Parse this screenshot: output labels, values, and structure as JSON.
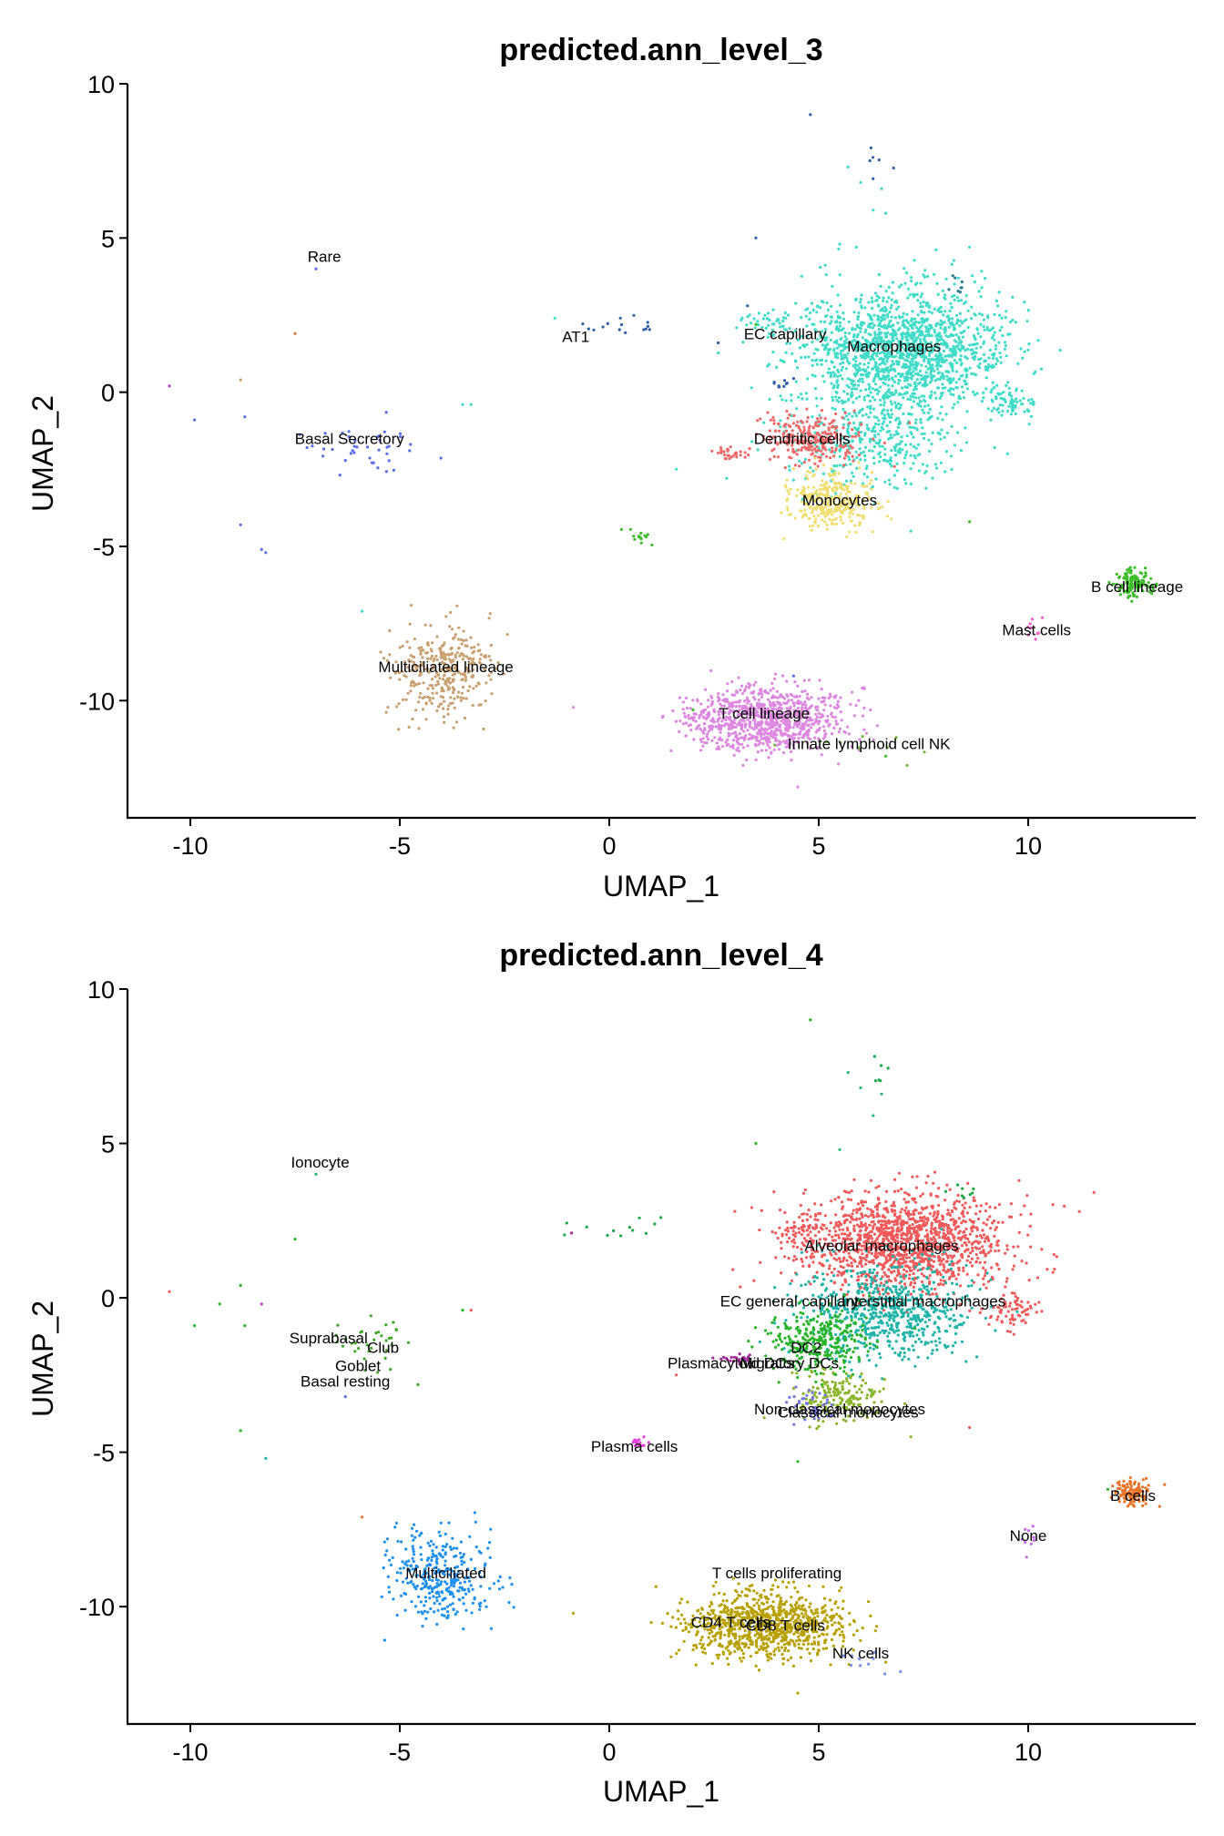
{
  "chart_data": [
    {
      "type": "scatter",
      "title": "predicted.ann_level_3",
      "xlabel": "UMAP_1",
      "ylabel": "UMAP_2",
      "xlim": [
        -11.5,
        14
      ],
      "ylim": [
        -13.8,
        10
      ],
      "xticks": [
        -10,
        -5,
        0,
        5,
        10
      ],
      "yticks": [
        -10,
        -5,
        0,
        5,
        10
      ],
      "grid": false,
      "series": [
        {
          "name": "Macrophages",
          "color": "#40dcc8",
          "clusters": [
            {
              "cx": 7.0,
              "cy": 1.3,
              "sx": 1.2,
              "sy": 1.0,
              "n": 1600
            },
            {
              "cx": 6.2,
              "cy": -1.6,
              "sx": 1.0,
              "sy": 0.7,
              "n": 350
            },
            {
              "cx": 9.6,
              "cy": -0.4,
              "sx": 0.3,
              "sy": 0.3,
              "n": 70
            },
            {
              "cx": 3.9,
              "cy": 2.2,
              "sx": 0.3,
              "sy": 0.2,
              "n": 40
            }
          ]
        },
        {
          "name": "Dendritic cells",
          "color": "#ee6a6a",
          "clusters": [
            {
              "cx": 4.9,
              "cy": -1.5,
              "sx": 0.6,
              "sy": 0.4,
              "n": 260
            },
            {
              "cx": 2.9,
              "cy": -2.0,
              "sx": 0.2,
              "sy": 0.1,
              "n": 30
            }
          ]
        },
        {
          "name": "Monocytes",
          "color": "#f0df70",
          "clusters": [
            {
              "cx": 5.3,
              "cy": -3.5,
              "sx": 0.5,
              "sy": 0.45,
              "n": 320
            }
          ]
        },
        {
          "name": "B cell lineage",
          "color": "#3cbe28",
          "clusters": [
            {
              "cx": 12.5,
              "cy": -6.2,
              "sx": 0.2,
              "sy": 0.2,
              "n": 130
            },
            {
              "cx": 0.7,
              "cy": -4.7,
              "sx": 0.15,
              "sy": 0.1,
              "n": 15
            }
          ]
        },
        {
          "name": "Mast cells",
          "color": "#f060c8",
          "clusters": [
            {
              "cx": 10.1,
              "cy": -7.7,
              "sx": 0.12,
              "sy": 0.25,
              "n": 9
            }
          ]
        },
        {
          "name": "Multiciliated lineage",
          "color": "#c8a070",
          "clusters": [
            {
              "cx": -4.0,
              "cy": -9.0,
              "sx": 0.6,
              "sy": 0.75,
              "n": 330
            }
          ]
        },
        {
          "name": "T cell lineage",
          "color": "#dd88e0",
          "clusters": [
            {
              "cx": 3.7,
              "cy": -10.6,
              "sx": 0.95,
              "sy": 0.5,
              "n": 950
            }
          ]
        },
        {
          "name": "Innate lymphoid cell NK",
          "color": "#7ab840",
          "clusters": [
            {
              "cx": 5.8,
              "cy": -11.5,
              "sx": 0.7,
              "sy": 0.3,
              "n": 10
            }
          ]
        },
        {
          "name": "Basal",
          "color": "#5a6de8",
          "clusters": [
            {
              "cx": -5.8,
              "cy": -1.8,
              "sx": 0.6,
              "sy": 0.5,
              "n": 40
            }
          ]
        },
        {
          "name": "AT1",
          "color": "#2f5fa8",
          "clusters": [
            {
              "cx": 0.2,
              "cy": 2.2,
              "sx": 0.6,
              "sy": 0.2,
              "n": 15
            },
            {
              "cx": 4.2,
              "cy": 0.3,
              "sx": 0.2,
              "sy": 0.1,
              "n": 10
            },
            {
              "cx": 6.3,
              "cy": 7.4,
              "sx": 0.2,
              "sy": 0.3,
              "n": 6
            }
          ]
        },
        {
          "name": "EC capillary",
          "color": "#2a7a90",
          "clusters": [
            {
              "cx": 8.4,
              "cy": 3.5,
              "sx": 0.2,
              "sy": 0.15,
              "n": 8
            }
          ]
        }
      ],
      "scattered_points": [
        {
          "x": -7.0,
          "y": 4.0,
          "color": "#5a6de8"
        },
        {
          "x": -7.5,
          "y": 1.9,
          "color": "#d8794a"
        },
        {
          "x": -10.5,
          "y": 0.2,
          "color": "#b040c0"
        },
        {
          "x": -9.9,
          "y": -0.9,
          "color": "#5a6de8"
        },
        {
          "x": -8.8,
          "y": 0.4,
          "color": "#c0a060"
        },
        {
          "x": -8.7,
          "y": -0.8,
          "color": "#5a6de8"
        },
        {
          "x": -8.8,
          "y": -4.3,
          "color": "#5a6de8"
        },
        {
          "x": -8.2,
          "y": -5.2,
          "color": "#5a6de8"
        },
        {
          "x": -8.3,
          "y": -5.1,
          "color": "#5a6de8"
        },
        {
          "x": -5.9,
          "y": -7.1,
          "color": "#40dcc8"
        },
        {
          "x": -3.3,
          "y": -0.4,
          "color": "#40dcc8"
        },
        {
          "x": -3.5,
          "y": -0.4,
          "color": "#40dcc8"
        },
        {
          "x": -1.3,
          "y": 2.4,
          "color": "#40dcc8"
        },
        {
          "x": 4.8,
          "y": 9.0,
          "color": "#2f5fa8"
        },
        {
          "x": 5.7,
          "y": 7.3,
          "color": "#40dcc8"
        },
        {
          "x": 6.0,
          "y": 6.8,
          "color": "#40dcc8"
        },
        {
          "x": 6.3,
          "y": 5.9,
          "color": "#40dcc8"
        },
        {
          "x": 6.5,
          "y": 6.6,
          "color": "#40dcc8"
        },
        {
          "x": 6.6,
          "y": 5.8,
          "color": "#40dcc8"
        },
        {
          "x": 3.5,
          "y": 5.0,
          "color": "#2f5fa8"
        },
        {
          "x": 5.9,
          "y": 4.7,
          "color": "#40dcc8"
        },
        {
          "x": 5.5,
          "y": 4.8,
          "color": "#40dcc8"
        },
        {
          "x": 3.3,
          "y": 2.8,
          "color": "#2f5fa8"
        },
        {
          "x": 2.6,
          "y": 1.6,
          "color": "#2f5fa8"
        },
        {
          "x": 3.5,
          "y": 2.2,
          "color": "#3cbe28"
        },
        {
          "x": 1.6,
          "y": -2.5,
          "color": "#40dcc8"
        },
        {
          "x": 8.6,
          "y": -4.2,
          "color": "#3cbe28"
        },
        {
          "x": 7.2,
          "y": -4.5,
          "color": "#40dcc8"
        },
        {
          "x": 4.4,
          "y": -9.2,
          "color": "#5a6de8"
        },
        {
          "x": 2.0,
          "y": -10.3,
          "color": "#3cbe28"
        },
        {
          "x": 6.6,
          "y": -11.8,
          "color": "#3cbe28"
        },
        {
          "x": 4.5,
          "y": -12.8,
          "color": "#dd88e0"
        }
      ],
      "annotations": [
        {
          "text": "Rare",
          "x": -6.8,
          "y": 4.4
        },
        {
          "text": "AT1",
          "x": -0.8,
          "y": 1.8
        },
        {
          "text": "EC capillary",
          "x": 4.2,
          "y": 1.9
        },
        {
          "text": "Macrophages",
          "x": 6.8,
          "y": 1.5
        },
        {
          "text": "Basal Secretory",
          "x": -6.2,
          "y": -1.5
        },
        {
          "text": "Dendritic cells",
          "x": 4.6,
          "y": -1.5
        },
        {
          "text": "Monocytes",
          "x": 5.5,
          "y": -3.5
        },
        {
          "text": "B cell lineage",
          "x": 12.6,
          "y": -6.3
        },
        {
          "text": "Mast cells",
          "x": 10.2,
          "y": -7.7
        },
        {
          "text": "Multiciliated lineage",
          "x": -3.9,
          "y": -8.9
        },
        {
          "text": "T cell lineage",
          "x": 3.7,
          "y": -10.4
        },
        {
          "text": "Innate lymphoid cell NK",
          "x": 6.2,
          "y": -11.4
        }
      ]
    },
    {
      "type": "scatter",
      "title": "predicted.ann_level_4",
      "xlabel": "UMAP_1",
      "ylabel": "UMAP_2",
      "xlim": [
        -11.5,
        14
      ],
      "ylim": [
        -13.8,
        10
      ],
      "xticks": [
        -10,
        -5,
        0,
        5,
        10
      ],
      "yticks": [
        -10,
        -5,
        0,
        5,
        10
      ],
      "grid": false,
      "series": [
        {
          "name": "Alveolar macrophages",
          "color": "#f05a5a",
          "clusters": [
            {
              "cx": 7.0,
              "cy": 1.8,
              "sx": 1.2,
              "sy": 0.8,
              "n": 1400
            },
            {
              "cx": 9.6,
              "cy": -0.4,
              "sx": 0.35,
              "sy": 0.3,
              "n": 70
            },
            {
              "cx": 4.6,
              "cy": 2.2,
              "sx": 0.3,
              "sy": 0.2,
              "n": 40
            }
          ]
        },
        {
          "name": "Interstitial macrophages",
          "color": "#20b4a8",
          "clusters": [
            {
              "cx": 6.6,
              "cy": -0.5,
              "sx": 1.0,
              "sy": 0.8,
              "n": 700
            }
          ]
        },
        {
          "name": "DC2",
          "color": "#28b428",
          "clusters": [
            {
              "cx": 5.0,
              "cy": -1.4,
              "sx": 0.6,
              "sy": 0.5,
              "n": 300
            }
          ]
        },
        {
          "name": "Classical monocytes",
          "color": "#8ab428",
          "clusters": [
            {
              "cx": 5.4,
              "cy": -3.2,
              "sx": 0.5,
              "sy": 0.4,
              "n": 180
            }
          ]
        },
        {
          "name": "Non-classical monocytes",
          "color": "#7878e0",
          "clusters": [
            {
              "cx": 4.9,
              "cy": -3.6,
              "sx": 0.3,
              "sy": 0.3,
              "n": 50
            }
          ]
        },
        {
          "name": "Migratory DCs",
          "color": "#a02898",
          "clusters": [
            {
              "cx": 3.1,
              "cy": -2.0,
              "sx": 0.25,
              "sy": 0.08,
              "n": 25
            }
          ]
        },
        {
          "name": "B cells",
          "color": "#e8742a",
          "clusters": [
            {
              "cx": 12.5,
              "cy": -6.3,
              "sx": 0.2,
              "sy": 0.2,
              "n": 130
            }
          ]
        },
        {
          "name": "Plasma cells",
          "color": "#e040d8",
          "clusters": [
            {
              "cx": 0.7,
              "cy": -4.7,
              "sx": 0.15,
              "sy": 0.1,
              "n": 15
            }
          ]
        },
        {
          "name": "None",
          "color": "#c868e8",
          "clusters": [
            {
              "cx": 10.1,
              "cy": -7.8,
              "sx": 0.12,
              "sy": 0.25,
              "n": 9
            }
          ]
        },
        {
          "name": "Multiciliated",
          "color": "#1e90f0",
          "clusters": [
            {
              "cx": -4.0,
              "cy": -9.0,
              "sx": 0.6,
              "sy": 0.75,
              "n": 330
            }
          ]
        },
        {
          "name": "CD4 T cells",
          "color": "#b8a000",
          "clusters": [
            {
              "cx": 3.7,
              "cy": -10.6,
              "sx": 0.95,
              "sy": 0.5,
              "n": 950
            }
          ]
        },
        {
          "name": "NK cells",
          "color": "#7a8cf0",
          "clusters": [
            {
              "cx": 6.0,
              "cy": -11.6,
              "sx": 0.4,
              "sy": 0.25,
              "n": 10
            }
          ]
        },
        {
          "name": "Club",
          "color": "#40a828",
          "clusters": [
            {
              "cx": -5.5,
              "cy": -1.5,
              "sx": 0.5,
              "sy": 0.45,
              "n": 35
            }
          ]
        },
        {
          "name": "EC general capillary",
          "color": "#18a848",
          "clusters": [
            {
              "cx": 0.0,
              "cy": 2.2,
              "sx": 0.5,
              "sy": 0.2,
              "n": 12
            },
            {
              "cx": 6.3,
              "cy": 7.4,
              "sx": 0.2,
              "sy": 0.3,
              "n": 6
            },
            {
              "cx": 8.4,
              "cy": 3.5,
              "sx": 0.2,
              "sy": 0.15,
              "n": 8
            }
          ]
        }
      ],
      "scattered_points": [
        {
          "x": -7.0,
          "y": 4.0,
          "color": "#28b878"
        },
        {
          "x": -7.5,
          "y": 1.9,
          "color": "#28b428"
        },
        {
          "x": -10.5,
          "y": 0.2,
          "color": "#f05a5a"
        },
        {
          "x": -9.9,
          "y": -0.9,
          "color": "#28b428"
        },
        {
          "x": -8.8,
          "y": 0.4,
          "color": "#28b428"
        },
        {
          "x": -8.7,
          "y": -0.9,
          "color": "#28b428"
        },
        {
          "x": -9.3,
          "y": -0.2,
          "color": "#28b428"
        },
        {
          "x": -8.3,
          "y": -0.2,
          "color": "#c040c0"
        },
        {
          "x": -8.8,
          "y": -4.3,
          "color": "#28b428"
        },
        {
          "x": -8.2,
          "y": -5.2,
          "color": "#20b4a8"
        },
        {
          "x": -6.3,
          "y": -3.2,
          "color": "#5a6de8"
        },
        {
          "x": -5.9,
          "y": -7.1,
          "color": "#e8742a"
        },
        {
          "x": -3.3,
          "y": -0.4,
          "color": "#f05a5a"
        },
        {
          "x": -3.5,
          "y": -0.4,
          "color": "#28b428"
        },
        {
          "x": -0.9,
          "y": 2.1,
          "color": "#a02898"
        },
        {
          "x": 4.8,
          "y": 9.0,
          "color": "#28b428"
        },
        {
          "x": 5.7,
          "y": 7.3,
          "color": "#28b878"
        },
        {
          "x": 6.0,
          "y": 6.8,
          "color": "#28b878"
        },
        {
          "x": 6.3,
          "y": 5.9,
          "color": "#28b878"
        },
        {
          "x": 6.5,
          "y": 6.6,
          "color": "#28b878"
        },
        {
          "x": 3.5,
          "y": 5.0,
          "color": "#28b428"
        },
        {
          "x": 5.5,
          "y": 4.8,
          "color": "#28b878"
        },
        {
          "x": 1.6,
          "y": -2.5,
          "color": "#f05a5a"
        },
        {
          "x": 8.6,
          "y": -4.2,
          "color": "#f05a5a"
        },
        {
          "x": 7.2,
          "y": -4.5,
          "color": "#8ab428"
        },
        {
          "x": 4.4,
          "y": -9.2,
          "color": "#b8a000"
        },
        {
          "x": 2.0,
          "y": -10.3,
          "color": "#b8a000"
        },
        {
          "x": 6.6,
          "y": -11.8,
          "color": "#b8a000"
        },
        {
          "x": 4.5,
          "y": -12.8,
          "color": "#b8a000"
        },
        {
          "x": 4.5,
          "y": -5.3,
          "color": "#28b428"
        },
        {
          "x": 11.9,
          "y": -6.2,
          "color": "#28b428"
        }
      ],
      "annotations": [
        {
          "text": "Ionocyte",
          "x": -6.9,
          "y": 4.4
        },
        {
          "text": "Alveolar macrophages",
          "x": 6.5,
          "y": 1.7
        },
        {
          "text": "EC general capillary",
          "x": 4.3,
          "y": -0.1
        },
        {
          "text": "Interstitial macrophages",
          "x": 7.5,
          "y": -0.1
        },
        {
          "text": "Suprabasal",
          "x": -6.7,
          "y": -1.3
        },
        {
          "text": "Club",
          "x": -5.4,
          "y": -1.6
        },
        {
          "text": "DC2",
          "x": 4.7,
          "y": -1.6
        },
        {
          "text": "Goblet",
          "x": -6.0,
          "y": -2.2
        },
        {
          "text": "Plasmacytoid DCs",
          "x": 2.9,
          "y": -2.1
        },
        {
          "text": "Migratory DCs",
          "x": 4.3,
          "y": -2.1
        },
        {
          "text": "Basal resting",
          "x": -6.3,
          "y": -2.7
        },
        {
          "text": "Non-classical monocytes",
          "x": 5.5,
          "y": -3.6
        },
        {
          "text": "Classical monocytes",
          "x": 5.7,
          "y": -3.7
        },
        {
          "text": "Plasma cells",
          "x": 0.6,
          "y": -4.8
        },
        {
          "text": "B cells",
          "x": 12.5,
          "y": -6.4
        },
        {
          "text": "None",
          "x": 10.0,
          "y": -7.7
        },
        {
          "text": "Multiciliated",
          "x": -3.9,
          "y": -8.9
        },
        {
          "text": "T cells proliferating",
          "x": 4.0,
          "y": -8.9
        },
        {
          "text": "CD4 T cells",
          "x": 2.9,
          "y": -10.5
        },
        {
          "text": "CD8 T cells",
          "x": 4.2,
          "y": -10.6
        },
        {
          "text": "NK cells",
          "x": 6.0,
          "y": -11.5
        }
      ]
    }
  ]
}
